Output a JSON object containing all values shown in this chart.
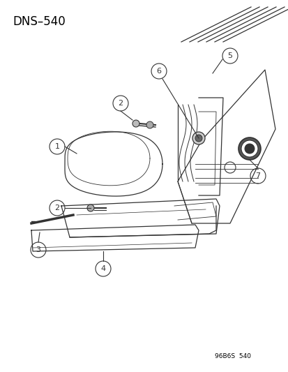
{
  "title": "DNS–540",
  "footer": "96B6S  540",
  "bg_color": "#ffffff",
  "line_color": "#333333",
  "fig_width": 4.14,
  "fig_height": 5.33,
  "dpi": 100
}
